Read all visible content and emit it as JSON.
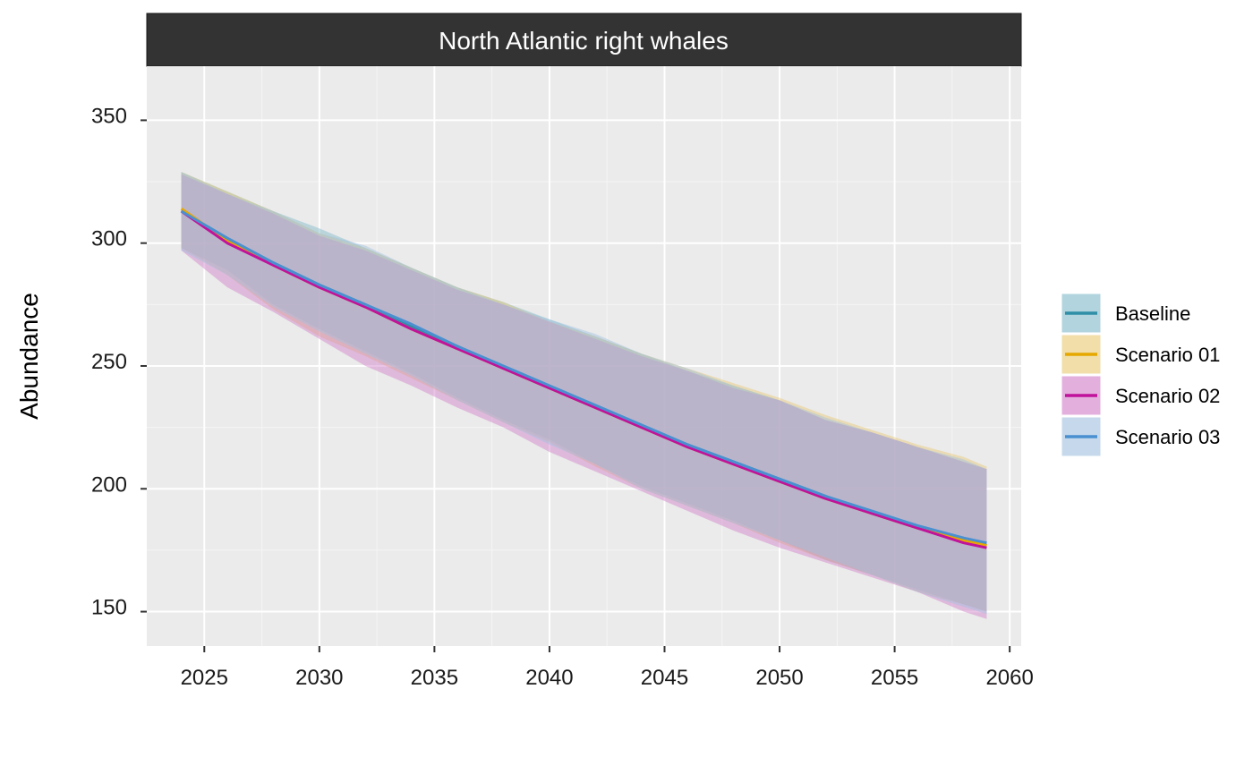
{
  "chart_data": {
    "type": "area",
    "panel_title": "North Atlantic right whales",
    "ylabel": "Abundance",
    "xlabel": "",
    "xlim": [
      2022.5,
      2060.5
    ],
    "ylim": [
      136,
      372
    ],
    "x_ticks": [
      2025,
      2030,
      2035,
      2040,
      2045,
      2050,
      2055,
      2060
    ],
    "y_ticks": [
      150,
      200,
      250,
      300,
      350
    ],
    "grid": true,
    "legend_position": "right",
    "series": [
      {
        "name": "Baseline",
        "color": "#2E8FA6",
        "fill": "#7FB8C8",
        "x": [
          2024,
          2026,
          2028,
          2030,
          2032,
          2034,
          2036,
          2038,
          2040,
          2042,
          2044,
          2046,
          2048,
          2050,
          2052,
          2054,
          2056,
          2058,
          2059
        ],
        "mean": [
          313,
          302,
          292,
          283,
          275,
          266,
          258,
          249,
          241,
          233,
          225,
          218,
          211,
          204,
          197,
          190,
          184,
          179,
          177
        ],
        "upper": [
          329,
          321,
          313,
          306,
          298,
          290,
          282,
          276,
          269,
          262,
          255,
          248,
          242,
          236,
          228,
          223,
          217,
          211,
          208
        ],
        "lower": [
          298,
          289,
          275,
          265,
          256,
          247,
          237,
          228,
          220,
          210,
          201,
          194,
          187,
          179,
          171,
          165,
          159,
          153,
          150
        ]
      },
      {
        "name": "Scenario 01",
        "color": "#E6A800",
        "fill": "#E8C870",
        "x": [
          2024,
          2026,
          2028,
          2030,
          2032,
          2034,
          2036,
          2038,
          2040,
          2042,
          2044,
          2046,
          2048,
          2050,
          2052,
          2054,
          2056,
          2058,
          2059
        ],
        "mean": [
          314,
          301,
          291,
          282,
          274,
          265,
          257,
          249,
          241,
          233,
          225,
          217,
          210,
          203,
          196,
          190,
          184,
          179,
          177
        ],
        "upper": [
          329,
          321,
          313,
          304,
          298,
          290,
          282,
          276,
          268,
          262,
          255,
          249,
          243,
          237,
          230,
          224,
          218,
          213,
          209
        ],
        "lower": [
          298,
          287,
          273,
          262,
          254,
          245,
          236,
          227,
          219,
          209,
          200,
          193,
          186,
          178,
          171,
          165,
          158,
          153,
          150
        ]
      },
      {
        "name": "Scenario 02",
        "color": "#C0129A",
        "fill": "#D07CC8",
        "x": [
          2024,
          2026,
          2028,
          2030,
          2032,
          2034,
          2036,
          2038,
          2040,
          2042,
          2044,
          2046,
          2048,
          2050,
          2052,
          2054,
          2056,
          2058,
          2059
        ],
        "mean": [
          313,
          300,
          291,
          282,
          274,
          265,
          257,
          249,
          241,
          233,
          225,
          217,
          210,
          203,
          196,
          190,
          184,
          178,
          176
        ],
        "upper": [
          328,
          320,
          312,
          303,
          297,
          289,
          281,
          275,
          268,
          261,
          254,
          248,
          241,
          236,
          228,
          223,
          217,
          211,
          208
        ],
        "lower": [
          297,
          282,
          272,
          261,
          250,
          242,
          233,
          225,
          215,
          207,
          199,
          191,
          183,
          176,
          170,
          164,
          158,
          150,
          147
        ]
      },
      {
        "name": "Scenario 03",
        "color": "#4A90D0",
        "fill": "#A0C0E0",
        "x": [
          2024,
          2026,
          2028,
          2030,
          2032,
          2034,
          2036,
          2038,
          2040,
          2042,
          2044,
          2046,
          2048,
          2050,
          2052,
          2054,
          2056,
          2058,
          2059
        ],
        "mean": [
          313,
          302,
          292,
          283,
          275,
          267,
          258,
          250,
          242,
          234,
          226,
          218,
          211,
          204,
          197,
          191,
          185,
          180,
          178
        ],
        "upper": [
          329,
          320,
          313,
          304,
          299,
          290,
          282,
          275,
          269,
          263,
          255,
          249,
          242,
          236,
          229,
          223,
          217,
          212,
          208
        ],
        "lower": [
          297,
          287,
          274,
          264,
          255,
          246,
          236,
          227,
          218,
          210,
          200,
          193,
          186,
          179,
          172,
          165,
          158,
          152,
          149
        ]
      }
    ]
  }
}
